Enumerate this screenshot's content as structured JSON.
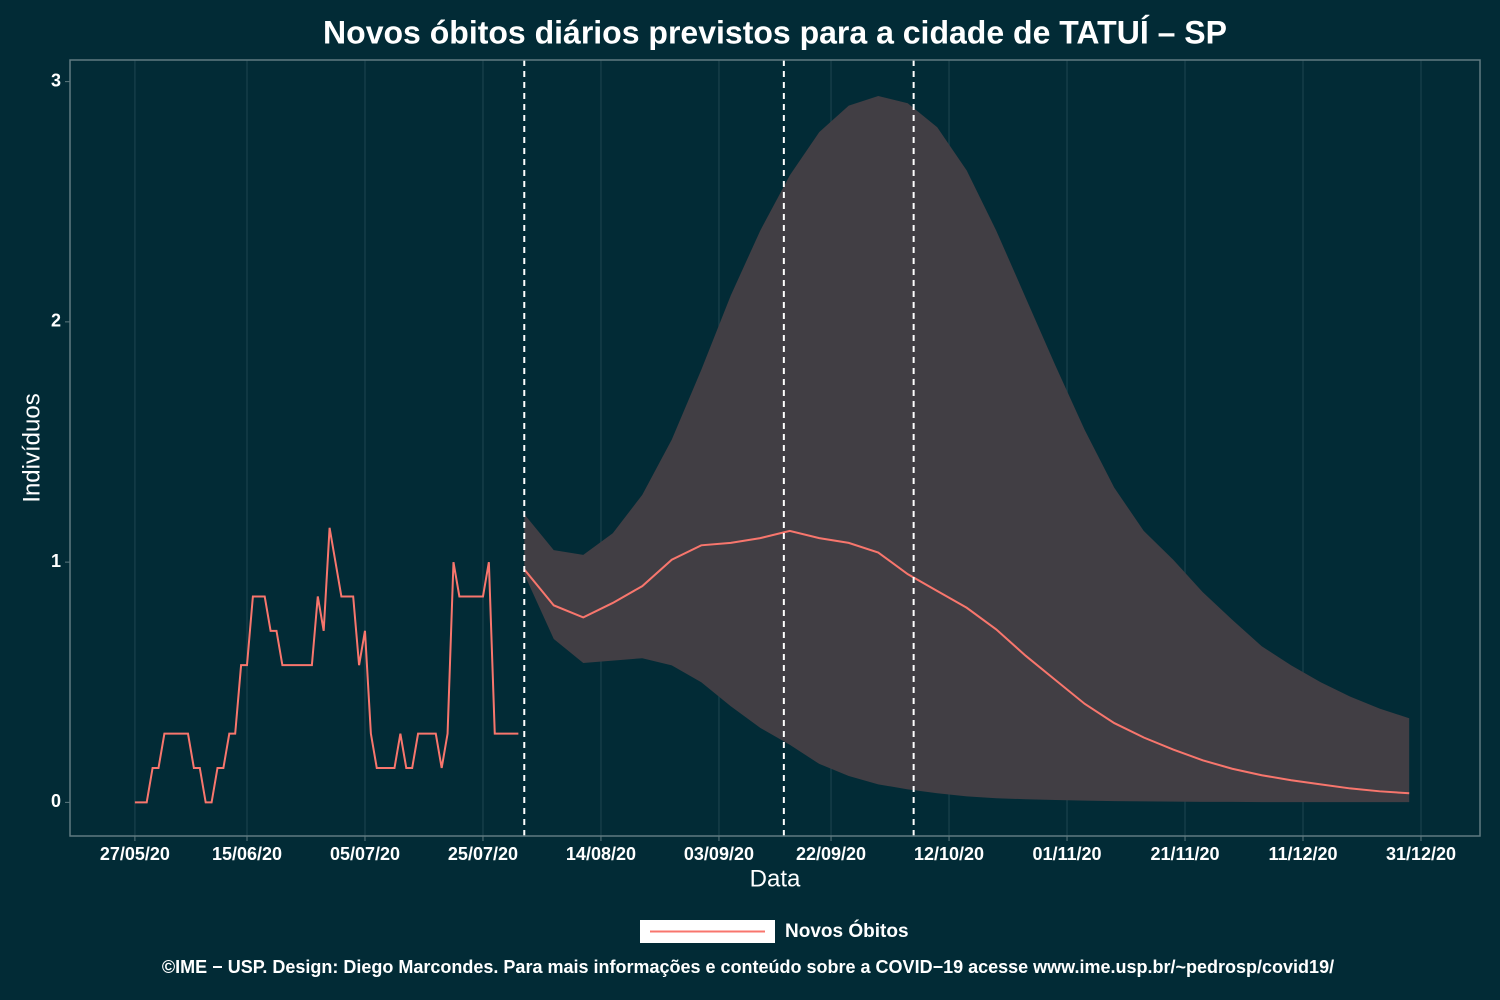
{
  "chart_data": {
    "type": "line",
    "title": "Novos óbitos diários previstos para a cidade de TATUÍ – SP",
    "xlabel": "Data",
    "ylabel": "Indivíduos",
    "caption": "©IME − USP. Design: Diego Marcondes. Para mais informações e conteúdo sobre a COVID−19 acesse www.ime.usp.br/~pedrosp/covid19/",
    "background": "#022b36",
    "grid": true,
    "legend": "bottom",
    "xlim": [
      "2020-05-16",
      "2021-01-10"
    ],
    "xticks": [
      {
        "value": "2020-05-27",
        "label": "27/05/20"
      },
      {
        "value": "2020-06-15",
        "label": "15/06/20"
      },
      {
        "value": "2020-07-05",
        "label": "05/07/20"
      },
      {
        "value": "2020-07-25",
        "label": "25/07/20"
      },
      {
        "value": "2020-08-14",
        "label": "14/08/20"
      },
      {
        "value": "2020-09-03",
        "label": "03/09/20"
      },
      {
        "value": "2020-09-22",
        "label": "22/09/20"
      },
      {
        "value": "2020-10-12",
        "label": "12/10/20"
      },
      {
        "value": "2020-11-01",
        "label": "01/11/20"
      },
      {
        "value": "2020-11-21",
        "label": "21/11/20"
      },
      {
        "value": "2020-12-11",
        "label": "11/12/20"
      },
      {
        "value": "2020-12-31",
        "label": "31/12/20"
      }
    ],
    "ylim": [
      -0.14,
      3.09
    ],
    "yticks": [
      0,
      1,
      2,
      3
    ],
    "vlines": [
      "2020-08-01",
      "2020-09-14",
      "2020-10-06"
    ],
    "series": [
      {
        "name": "Novos Óbitos",
        "color": "#f8766d",
        "x": [
          "2020-05-27",
          "2020-05-28",
          "2020-05-29",
          "2020-05-30",
          "2020-05-31",
          "2020-06-01",
          "2020-06-02",
          "2020-06-03",
          "2020-06-04",
          "2020-06-05",
          "2020-06-06",
          "2020-06-07",
          "2020-06-08",
          "2020-06-09",
          "2020-06-10",
          "2020-06-11",
          "2020-06-12",
          "2020-06-13",
          "2020-06-14",
          "2020-06-15",
          "2020-06-16",
          "2020-06-17",
          "2020-06-18",
          "2020-06-19",
          "2020-06-20",
          "2020-06-21",
          "2020-06-22",
          "2020-06-23",
          "2020-06-24",
          "2020-06-25",
          "2020-06-26",
          "2020-06-27",
          "2020-06-28",
          "2020-06-29",
          "2020-06-30",
          "2020-07-01",
          "2020-07-02",
          "2020-07-03",
          "2020-07-04",
          "2020-07-05",
          "2020-07-06",
          "2020-07-07",
          "2020-07-08",
          "2020-07-09",
          "2020-07-10",
          "2020-07-11",
          "2020-07-12",
          "2020-07-13",
          "2020-07-14",
          "2020-07-15",
          "2020-07-16",
          "2020-07-17",
          "2020-07-18",
          "2020-07-19",
          "2020-07-20",
          "2020-07-21",
          "2020-07-22",
          "2020-07-23",
          "2020-07-24",
          "2020-07-25",
          "2020-07-26",
          "2020-07-27",
          "2020-07-28",
          "2020-07-29",
          "2020-07-30",
          "2020-07-31"
        ],
        "values": [
          0,
          0,
          0,
          0.143,
          0.143,
          0.286,
          0.286,
          0.286,
          0.286,
          0.286,
          0.143,
          0.143,
          0,
          0,
          0.143,
          0.143,
          0.286,
          0.286,
          0.571,
          0.571,
          0.857,
          0.857,
          0.857,
          0.714,
          0.714,
          0.571,
          0.571,
          0.571,
          0.571,
          0.571,
          0.571,
          0.857,
          0.714,
          1.143,
          1.0,
          0.857,
          0.857,
          0.857,
          0.571,
          0.714,
          0.286,
          0.143,
          0.143,
          0.143,
          0.143,
          0.286,
          0.143,
          0.143,
          0.286,
          0.286,
          0.286,
          0.286,
          0.143,
          0.286,
          1.0,
          0.857,
          0.857,
          0.857,
          0.857,
          0.857,
          1.0,
          0.286,
          0.286,
          0.286,
          0.286,
          0.286
        ]
      },
      {
        "color": "#f8766d",
        "band_color": "#413e44",
        "x": [
          "2020-08-01",
          "2020-08-06",
          "2020-08-11",
          "2020-08-16",
          "2020-08-21",
          "2020-08-26",
          "2020-08-31",
          "2020-09-05",
          "2020-09-10",
          "2020-09-15",
          "2020-09-20",
          "2020-09-25",
          "2020-09-30",
          "2020-10-05",
          "2020-10-10",
          "2020-10-15",
          "2020-10-20",
          "2020-10-25",
          "2020-10-30",
          "2020-11-04",
          "2020-11-09",
          "2020-11-14",
          "2020-11-19",
          "2020-11-24",
          "2020-11-29",
          "2020-12-04",
          "2020-12-09",
          "2020-12-14",
          "2020-12-19",
          "2020-12-24",
          "2020-12-29"
        ],
        "values": [
          0.97,
          0.82,
          0.77,
          0.83,
          0.9,
          1.01,
          1.07,
          1.08,
          1.1,
          1.13,
          1.1,
          1.08,
          1.04,
          0.95,
          0.88,
          0.81,
          0.72,
          0.61,
          0.51,
          0.41,
          0.33,
          0.27,
          0.22,
          0.175,
          0.14,
          0.113,
          0.092,
          0.075,
          0.058,
          0.046,
          0.038
        ],
        "upper": [
          1.2,
          1.05,
          1.03,
          1.12,
          1.28,
          1.51,
          1.8,
          2.11,
          2.38,
          2.61,
          2.79,
          2.9,
          2.94,
          2.91,
          2.81,
          2.63,
          2.38,
          2.1,
          1.82,
          1.55,
          1.31,
          1.13,
          1.01,
          0.875,
          0.76,
          0.65,
          0.57,
          0.5,
          0.44,
          0.39,
          0.35
        ],
        "lower": [
          0.95,
          0.68,
          0.58,
          0.59,
          0.6,
          0.57,
          0.5,
          0.4,
          0.31,
          0.24,
          0.16,
          0.11,
          0.075,
          0.054,
          0.038,
          0.025,
          0.017,
          0.013,
          0.01,
          0.007,
          0.005,
          0.004,
          0.003,
          0.002,
          0.002,
          0.001,
          0.001,
          0.001,
          0.001,
          0.001,
          0.001
        ]
      }
    ]
  }
}
